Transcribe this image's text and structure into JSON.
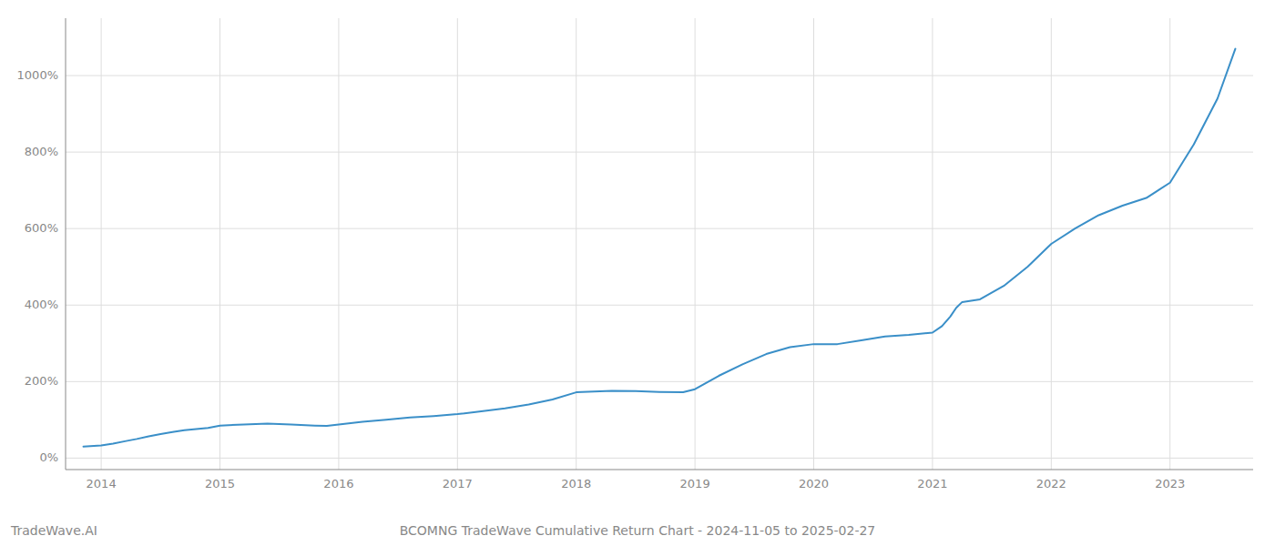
{
  "chart_data": {
    "type": "line",
    "title": "BCOMNG TradeWave Cumulative Return Chart - 2024-11-05 to 2025-02-27",
    "annotations": [
      "TradeWave.AI"
    ],
    "color": "#3a8fc8",
    "grid": true,
    "x": [
      2013.85,
      2014.0,
      2014.1,
      2014.2,
      2014.3,
      2014.4,
      2014.5,
      2014.6,
      2014.7,
      2014.8,
      2014.9,
      2015.0,
      2015.2,
      2015.4,
      2015.6,
      2015.8,
      2015.9,
      2016.0,
      2016.2,
      2016.4,
      2016.6,
      2016.8,
      2017.0,
      2017.2,
      2017.4,
      2017.6,
      2017.8,
      2018.0,
      2018.15,
      2018.3,
      2018.5,
      2018.7,
      2018.9,
      2019.0,
      2019.2,
      2019.4,
      2019.6,
      2019.8,
      2020.0,
      2020.2,
      2020.4,
      2020.6,
      2020.8,
      2021.0,
      2021.08,
      2021.15,
      2021.2,
      2021.25,
      2021.4,
      2021.6,
      2021.8,
      2022.0,
      2022.2,
      2022.4,
      2022.6,
      2022.8,
      2023.0,
      2023.2,
      2023.4,
      2023.55
    ],
    "values": [
      30,
      33,
      38,
      44,
      50,
      57,
      63,
      68,
      73,
      76,
      79,
      85,
      88,
      90,
      88,
      85,
      84,
      88,
      95,
      100,
      106,
      110,
      115,
      122,
      130,
      140,
      153,
      172,
      174,
      176,
      175,
      173,
      172,
      180,
      215,
      245,
      272,
      290,
      298,
      298,
      308,
      318,
      322,
      328,
      345,
      370,
      393,
      408,
      415,
      450,
      500,
      560,
      600,
      635,
      660,
      680,
      720,
      820,
      940,
      1070
    ],
    "xlim": [
      2013.7,
      2023.7
    ],
    "xticks": [
      2014,
      2015,
      2016,
      2017,
      2018,
      2019,
      2020,
      2021,
      2022,
      2023
    ],
    "ylim": [
      -30,
      1150
    ],
    "yticks": [
      {
        "value": 0,
        "label": "0%"
      },
      {
        "value": 200,
        "label": "200%"
      },
      {
        "value": 400,
        "label": "400%"
      },
      {
        "value": 600,
        "label": "600%"
      },
      {
        "value": 800,
        "label": "800%"
      },
      {
        "value": 1000,
        "label": "1000%"
      }
    ]
  }
}
